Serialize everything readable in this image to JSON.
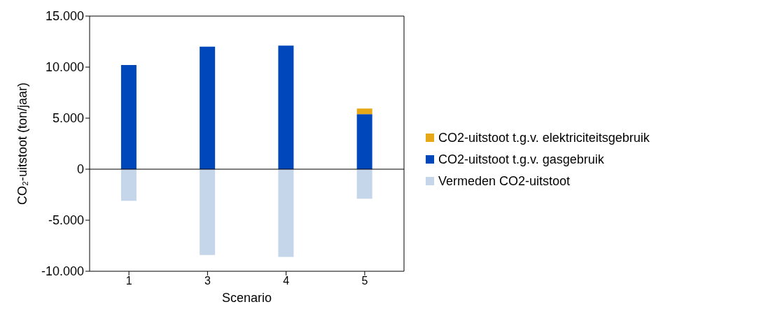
{
  "chart_data": {
    "type": "bar",
    "stacked": true,
    "xlabel": "Scenario",
    "ylabel": "CO₂-uitstoot (ton/jaar)",
    "categories": [
      "1",
      "3",
      "4",
      "5"
    ],
    "series": [
      {
        "name": "Vermeden CO2-uitstoot",
        "color": "#c5d5ea",
        "values": [
          -3100,
          -8400,
          -8600,
          -2900
        ]
      },
      {
        "name": "CO2-uitstoot t.g.v. gasgebruik",
        "color": "#0047bb",
        "values": [
          10200,
          12000,
          12100,
          5400
        ]
      },
      {
        "name": "CO2-uitstoot t.g.v. elektriciteitsgebruik",
        "color": "#e6a817",
        "values": [
          0,
          0,
          0,
          550
        ]
      }
    ],
    "ylim": [
      -10000,
      15000
    ],
    "yticks": [
      {
        "value": -10000,
        "label": "-10.000"
      },
      {
        "value": -5000,
        "label": "-5.000"
      },
      {
        "value": 0,
        "label": "0"
      },
      {
        "value": 5000,
        "label": "5.000"
      },
      {
        "value": 10000,
        "label": "10.000"
      },
      {
        "value": 15000,
        "label": "15.000"
      }
    ],
    "ref_lines": [
      {
        "axis": "y",
        "value": 0,
        "color": "#000000"
      }
    ],
    "legend": "right",
    "grid": false
  }
}
